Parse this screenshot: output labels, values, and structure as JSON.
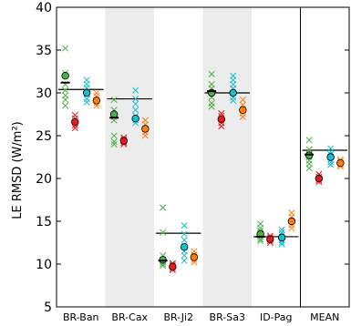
{
  "chart_data": {
    "type": "scatter",
    "ylabel": "LE RMSD (W/m²)",
    "ylim": [
      5,
      40
    ],
    "yticks": [
      5,
      10,
      15,
      20,
      25,
      30,
      35,
      40
    ],
    "categories": [
      "BR-Ban",
      "BR-Cax",
      "BR-Ji2",
      "BR-Sa3",
      "ID-Pag",
      "MEAN"
    ],
    "shaded_categories": [
      "BR-Cax",
      "BR-Sa3"
    ],
    "divider_before_category": "MEAN",
    "grid": false,
    "colors": {
      "green": "#4daf4a",
      "red": "#e41a1c",
      "teal": "#17becf",
      "orange": "#ff7f0e",
      "black": "#000000",
      "shade": "#ececec"
    },
    "series": [
      {
        "color": "green",
        "circle_median": [
          32.0,
          27.5,
          10.5,
          30.0,
          13.5,
          22.7
        ],
        "crosses": [
          [
            35.2,
            32.3,
            31.0,
            30.3,
            29.7,
            29.2,
            28.5
          ],
          [
            29.2,
            28.0,
            27.2,
            26.8,
            25.0,
            24.3,
            24.0
          ],
          [
            16.6,
            13.7,
            11.0,
            10.5,
            10.2,
            10.0,
            9.8
          ],
          [
            32.2,
            31.0,
            30.5,
            30.0,
            29.5,
            28.8,
            28.4
          ],
          [
            14.7,
            14.2,
            13.9,
            13.5,
            13.2,
            12.9,
            12.7
          ],
          [
            24.5,
            23.4,
            22.9,
            22.5,
            22.1,
            21.7,
            21.2
          ]
        ]
      },
      {
        "color": "red",
        "circle_median": [
          26.6,
          24.4,
          9.7,
          26.9,
          12.9,
          20.0
        ],
        "crosses": [
          [
            27.4,
            27.0,
            26.6,
            26.2,
            25.9
          ],
          [
            24.8,
            24.6,
            24.4,
            24.2,
            24.0
          ],
          [
            10.1,
            9.9,
            9.7,
            9.5,
            9.3
          ],
          [
            27.6,
            27.3,
            26.9,
            26.5,
            26.1
          ],
          [
            13.3,
            13.1,
            12.9,
            12.7,
            12.5
          ],
          [
            20.5,
            20.2,
            20.0,
            19.8,
            19.6
          ]
        ]
      },
      {
        "color": "teal",
        "circle_median": [
          30.0,
          27.0,
          12.0,
          30.0,
          13.1,
          22.5
        ],
        "crosses": [
          [
            31.5,
            31.0,
            30.6,
            30.2,
            29.8,
            29.3,
            28.9
          ],
          [
            30.3,
            29.3,
            28.7,
            28.0,
            27.3,
            26.8,
            26.5
          ],
          [
            14.5,
            13.5,
            12.8,
            12.0,
            11.5,
            11.0,
            10.4
          ],
          [
            32.0,
            31.5,
            31.0,
            30.5,
            30.0,
            29.5,
            29.1
          ],
          [
            14.0,
            13.7,
            13.4,
            13.1,
            12.8,
            12.5,
            12.3
          ],
          [
            23.5,
            23.1,
            22.8,
            22.5,
            22.2,
            21.9,
            21.6
          ]
        ]
      },
      {
        "color": "orange",
        "circle_median": [
          29.1,
          25.8,
          10.8,
          28.0,
          15.0,
          21.8
        ],
        "crosses": [
          [
            30.0,
            29.6,
            29.2,
            28.8,
            28.5
          ],
          [
            26.8,
            26.3,
            25.8,
            25.4,
            25.0
          ],
          [
            11.5,
            11.1,
            10.8,
            10.5,
            10.2
          ],
          [
            29.2,
            28.6,
            28.0,
            27.6,
            27.2
          ],
          [
            16.0,
            15.5,
            15.0,
            14.6,
            14.2
          ],
          [
            22.2,
            22.0,
            21.8,
            21.6,
            21.4
          ]
        ]
      },
      {
        "color": "black",
        "line_median": [
          31.2,
          27.1,
          10.4,
          30.2,
          13.2,
          22.8
        ]
      }
    ],
    "hlines": [
      30.4,
      29.3,
      13.6,
      30.0,
      13.2,
      23.3
    ]
  }
}
